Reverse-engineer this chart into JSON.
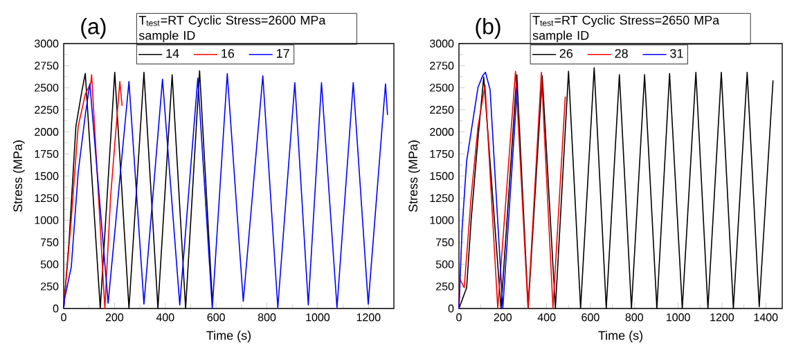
{
  "chart_data": [
    {
      "type": "line",
      "title": "(a)",
      "legend_title": "T$_{test}$=RT Cyclic Stress=2600 MPa sample ID",
      "xlabel": "Time (s)",
      "ylabel": "Stress (MPa)",
      "xlim": [
        0,
        1300
      ],
      "ylim": [
        0,
        3000
      ],
      "xticks": [
        0,
        200,
        400,
        600,
        800,
        1000,
        1200
      ],
      "yticks": [
        0,
        250,
        500,
        750,
        1000,
        1250,
        1500,
        1750,
        2000,
        2250,
        2500,
        2750,
        3000
      ],
      "legend": "top",
      "series": [
        {
          "name": "14",
          "color": "#000000",
          "x": [
            0,
            21,
            48,
            71,
            85,
            144,
            201,
            257,
            316,
            371,
            427,
            480,
            535,
            585
          ],
          "values": [
            0,
            757,
            2061,
            2452,
            2661,
            0,
            2674,
            0,
            2674,
            0,
            2648,
            0,
            2692,
            100
          ]
        },
        {
          "name": "16",
          "color": "#ff0000",
          "x": [
            0,
            30,
            57,
            85,
            107,
            110,
            162,
            185,
            221,
            230
          ],
          "values": [
            0,
            1017,
            2061,
            2426,
            2557,
            2648,
            0,
            1278,
            2570,
            2296
          ]
        },
        {
          "name": "17",
          "color": "#0000ff",
          "x": [
            0,
            3,
            30,
            57,
            85,
            103,
            175,
            257,
            316,
            389,
            457,
            528,
            585,
            644,
            707,
            784,
            843,
            910,
            963,
            1015,
            1076,
            1140,
            1199,
            1267,
            1275
          ],
          "values": [
            0,
            104,
            470,
            1539,
            2191,
            2544,
            60,
            2570,
            50,
            2596,
            40,
            2609,
            0,
            2661,
            80,
            2635,
            10,
            2557,
            40,
            2557,
            10,
            2557,
            50,
            2544,
            2191
          ]
        }
      ]
    },
    {
      "type": "line",
      "title": "(b)",
      "legend_title": "T$_{test}$=RT Cyclic Stress=2650 MPa sample ID",
      "xlabel": "Time (s)",
      "ylabel": "Stress (MPa)",
      "xlim": [
        0,
        1475
      ],
      "ylim": [
        0,
        3000
      ],
      "xticks": [
        0,
        200,
        400,
        600,
        800,
        1000,
        1200,
        1400
      ],
      "yticks": [
        0,
        250,
        500,
        750,
        1000,
        1250,
        1500,
        1750,
        2000,
        2250,
        2500,
        2750,
        3000
      ],
      "legend": "top",
      "series": [
        {
          "name": "26",
          "color": "#000000",
          "x": [
            0,
            35,
            56,
            87,
            113,
            192,
            264,
            316,
            380,
            440,
            500,
            555,
            617,
            672,
            732,
            787,
            847,
            903,
            961,
            1019,
            1081,
            1136,
            1197,
            1252,
            1315,
            1370,
            1433
          ],
          "values": [
            0,
            235,
            1017,
            1930,
            2622,
            0,
            2648,
            0,
            2635,
            0,
            2687,
            0,
            2726,
            0,
            2648,
            0,
            2648,
            0,
            2661,
            0,
            2674,
            0,
            2674,
            0,
            2674,
            20,
            2583
          ]
        },
        {
          "name": "28",
          "color": "#ff0000",
          "x": [
            0,
            3,
            24,
            56,
            87,
            119,
            177,
            258,
            315,
            376,
            429,
            485
          ],
          "values": [
            0,
            339,
            235,
            1278,
            2061,
            2531,
            0,
            2687,
            0,
            2674,
            0,
            2400
          ]
        },
        {
          "name": "31",
          "color": "#0000ff",
          "x": [
            0,
            14,
            35,
            56,
            87,
            108,
            121,
            142,
            200,
            266
          ],
          "values": [
            0,
            887,
            1670,
            2009,
            2505,
            2635,
            2674,
            2479,
            0,
            2505
          ]
        }
      ]
    }
  ]
}
